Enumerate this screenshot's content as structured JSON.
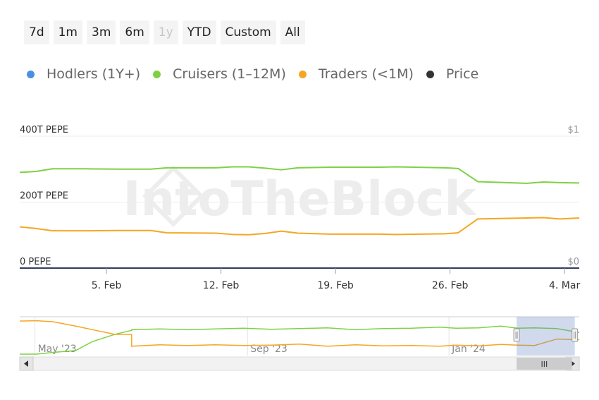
{
  "range_buttons": [
    {
      "label": "7d",
      "enabled": true
    },
    {
      "label": "1m",
      "enabled": true
    },
    {
      "label": "3m",
      "enabled": true
    },
    {
      "label": "6m",
      "enabled": true
    },
    {
      "label": "1y",
      "enabled": false
    },
    {
      "label": "YTD",
      "enabled": true
    },
    {
      "label": "Custom",
      "enabled": true
    },
    {
      "label": "All",
      "enabled": true
    }
  ],
  "legend": [
    {
      "label": "Hodlers (1Y+)",
      "color": "#4a90e2"
    },
    {
      "label": "Cruisers (1–12M)",
      "color": "#7ed144"
    },
    {
      "label": "Traders (<1M)",
      "color": "#f5a623"
    },
    {
      "label": "Price",
      "color": "#333333"
    }
  ],
  "watermark": "IntoTheBlock",
  "chart_data": {
    "type": "line",
    "y_axis_left": {
      "ticks": [
        "0 PEPE",
        "200T PEPE",
        "400T PEPE"
      ],
      "values": [
        0,
        200,
        400
      ],
      "unit": "T PEPE",
      "range": [
        0,
        400
      ]
    },
    "y_axis_right": {
      "ticks": [
        "$0",
        "$1"
      ],
      "values": [
        0,
        1
      ]
    },
    "x_axis": {
      "ticks": [
        "5. Feb",
        "12. Feb",
        "19. Feb",
        "26. Feb",
        "4. Mar"
      ],
      "tick_day": [
        5,
        12,
        19,
        26,
        33
      ],
      "range_day": [
        -0.3,
        33.9
      ]
    },
    "series": [
      {
        "name": "Cruisers (1–12M)",
        "color": "#7ed144",
        "x_day": [
          -0.3,
          0.7,
          1.7,
          3.7,
          5.7,
          7.7,
          8.7,
          11.7,
          12.7,
          13.7,
          14.7,
          15.7,
          16.7,
          18.7,
          21.7,
          22.7,
          25.7,
          26.5,
          27.7,
          30.7,
          31.7,
          32.7,
          33.9
        ],
        "y": [
          290,
          293,
          301,
          301,
          300,
          300,
          304,
          304,
          307,
          307,
          303,
          298,
          304,
          306,
          306,
          307,
          304,
          302,
          262,
          257,
          261,
          259,
          258
        ]
      },
      {
        "name": "Traders (<1M)",
        "color": "#f5a623",
        "x_day": [
          -0.3,
          0.7,
          1.7,
          3.7,
          5.7,
          7.7,
          8.7,
          11.7,
          12.7,
          13.7,
          14.7,
          15.7,
          16.7,
          18.7,
          21.7,
          22.7,
          25.7,
          26.5,
          27.7,
          30.7,
          31.7,
          32.7,
          33.9
        ],
        "y": [
          125,
          120,
          113,
          113,
          114,
          114,
          107,
          106,
          102,
          101,
          105,
          112,
          106,
          103,
          103,
          102,
          104,
          107,
          149,
          152,
          153,
          149,
          152
        ]
      },
      {
        "name": "Hodlers (1Y+)",
        "color": "#4a90e2",
        "x_day": [],
        "y": []
      }
    ]
  },
  "navigator": {
    "labels": [
      "May '23",
      "Sep '23",
      "Jan '24"
    ],
    "label_frac": [
      0.07,
      0.45,
      0.81
    ],
    "selection_frac": [
      0.888,
      0.992
    ],
    "scroll_thumb_label": "III",
    "cruisers_y": [
      0,
      0,
      0.05,
      0.1,
      0.35,
      0.55,
      0.66,
      0.68,
      0.7,
      0.68,
      0.7,
      0.72,
      0.69,
      0.71,
      0.73,
      0.68,
      0.71,
      0.72,
      0.75,
      0.72,
      0.73,
      0.78,
      0.72,
      0.73,
      0.71,
      0.6
    ],
    "traders_y": [
      0.92,
      0.93,
      0.9,
      0.78,
      0.68,
      0.55,
      0.55,
      0.22,
      0.26,
      0.24,
      0.26,
      0.24,
      0.25,
      0.28,
      0.22,
      0.26,
      0.23,
      0.24,
      0.22,
      0.25,
      0.23,
      0.27,
      0.25,
      0.24,
      0.42,
      0.4
    ],
    "x_frac": [
      0.0,
      0.03,
      0.06,
      0.1,
      0.13,
      0.17,
      0.2,
      0.2,
      0.25,
      0.3,
      0.35,
      0.4,
      0.45,
      0.5,
      0.55,
      0.6,
      0.65,
      0.7,
      0.75,
      0.78,
      0.82,
      0.86,
      0.89,
      0.92,
      0.96,
      1.0
    ]
  }
}
